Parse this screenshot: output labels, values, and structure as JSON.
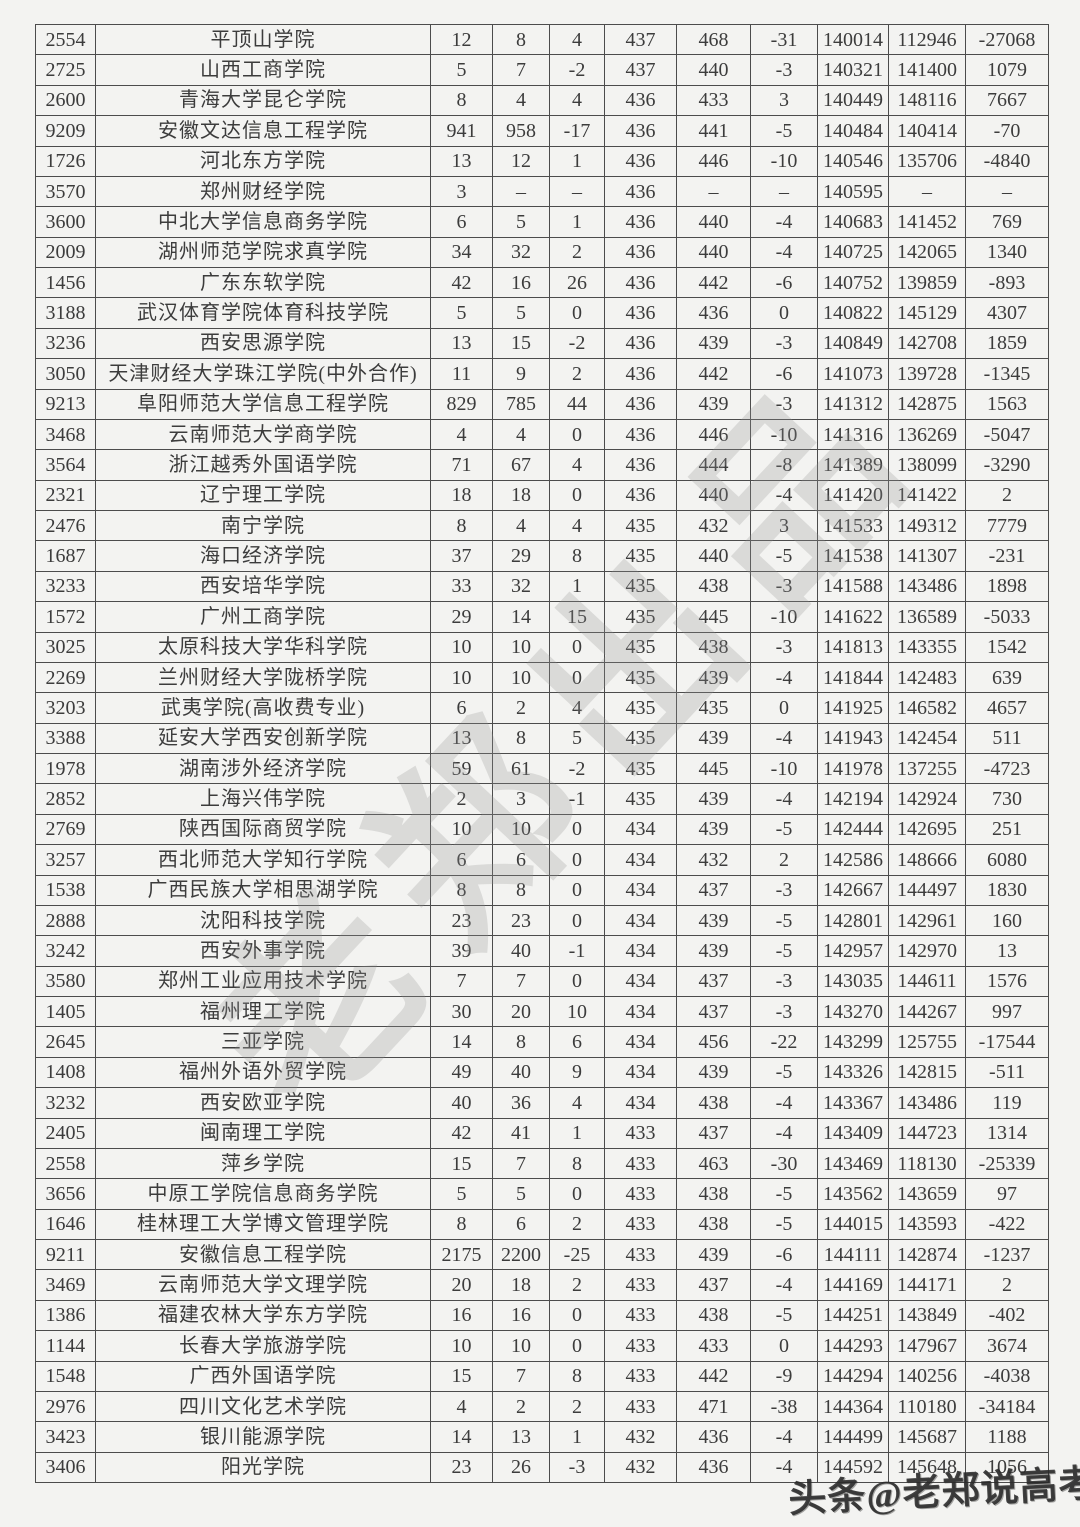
{
  "watermarks": {
    "diagonal_text": "老郑出品",
    "corner_text": "头条@老郑说高考"
  },
  "table": {
    "rows": [
      [
        "2554",
        "平顶山学院",
        "12",
        "8",
        "4",
        "437",
        "468",
        "-31",
        "140014",
        "112946",
        "-27068"
      ],
      [
        "2725",
        "山西工商学院",
        "5",
        "7",
        "-2",
        "437",
        "440",
        "-3",
        "140321",
        "141400",
        "1079"
      ],
      [
        "2600",
        "青海大学昆仑学院",
        "8",
        "4",
        "4",
        "436",
        "433",
        "3",
        "140449",
        "148116",
        "7667"
      ],
      [
        "9209",
        "安徽文达信息工程学院",
        "941",
        "958",
        "-17",
        "436",
        "441",
        "-5",
        "140484",
        "140414",
        "-70"
      ],
      [
        "1726",
        "河北东方学院",
        "13",
        "12",
        "1",
        "436",
        "446",
        "-10",
        "140546",
        "135706",
        "-4840"
      ],
      [
        "3570",
        "郑州财经学院",
        "3",
        "–",
        "–",
        "436",
        "–",
        "–",
        "140595",
        "–",
        "–"
      ],
      [
        "3600",
        "中北大学信息商务学院",
        "6",
        "5",
        "1",
        "436",
        "440",
        "-4",
        "140683",
        "141452",
        "769"
      ],
      [
        "2009",
        "湖州师范学院求真学院",
        "34",
        "32",
        "2",
        "436",
        "440",
        "-4",
        "140725",
        "142065",
        "1340"
      ],
      [
        "1456",
        "广东东软学院",
        "42",
        "16",
        "26",
        "436",
        "442",
        "-6",
        "140752",
        "139859",
        "-893"
      ],
      [
        "3188",
        "武汉体育学院体育科技学院",
        "5",
        "5",
        "0",
        "436",
        "436",
        "0",
        "140822",
        "145129",
        "4307"
      ],
      [
        "3236",
        "西安思源学院",
        "13",
        "15",
        "-2",
        "436",
        "439",
        "-3",
        "140849",
        "142708",
        "1859"
      ],
      [
        "3050",
        "天津财经大学珠江学院(中外合作)",
        "11",
        "9",
        "2",
        "436",
        "442",
        "-6",
        "141073",
        "139728",
        "-1345"
      ],
      [
        "9213",
        "阜阳师范大学信息工程学院",
        "829",
        "785",
        "44",
        "436",
        "439",
        "-3",
        "141312",
        "142875",
        "1563"
      ],
      [
        "3468",
        "云南师范大学商学院",
        "4",
        "4",
        "0",
        "436",
        "446",
        "-10",
        "141316",
        "136269",
        "-5047"
      ],
      [
        "3564",
        "浙江越秀外国语学院",
        "71",
        "67",
        "4",
        "436",
        "444",
        "-8",
        "141389",
        "138099",
        "-3290"
      ],
      [
        "2321",
        "辽宁理工学院",
        "18",
        "18",
        "0",
        "436",
        "440",
        "-4",
        "141420",
        "141422",
        "2"
      ],
      [
        "2476",
        "南宁学院",
        "8",
        "4",
        "4",
        "435",
        "432",
        "3",
        "141533",
        "149312",
        "7779"
      ],
      [
        "1687",
        "海口经济学院",
        "37",
        "29",
        "8",
        "435",
        "440",
        "-5",
        "141538",
        "141307",
        "-231"
      ],
      [
        "3233",
        "西安培华学院",
        "33",
        "32",
        "1",
        "435",
        "438",
        "-3",
        "141588",
        "143486",
        "1898"
      ],
      [
        "1572",
        "广州工商学院",
        "29",
        "14",
        "15",
        "435",
        "445",
        "-10",
        "141622",
        "136589",
        "-5033"
      ],
      [
        "3025",
        "太原科技大学华科学院",
        "10",
        "10",
        "0",
        "435",
        "438",
        "-3",
        "141813",
        "143355",
        "1542"
      ],
      [
        "2269",
        "兰州财经大学陇桥学院",
        "10",
        "10",
        "0",
        "435",
        "439",
        "-4",
        "141844",
        "142483",
        "639"
      ],
      [
        "3203",
        "武夷学院(高收费专业)",
        "6",
        "2",
        "4",
        "435",
        "435",
        "0",
        "141925",
        "146582",
        "4657"
      ],
      [
        "3388",
        "延安大学西安创新学院",
        "13",
        "8",
        "5",
        "435",
        "439",
        "-4",
        "141943",
        "142454",
        "511"
      ],
      [
        "1978",
        "湖南涉外经济学院",
        "59",
        "61",
        "-2",
        "435",
        "445",
        "-10",
        "141978",
        "137255",
        "-4723"
      ],
      [
        "2852",
        "上海兴伟学院",
        "2",
        "3",
        "-1",
        "435",
        "439",
        "-4",
        "142194",
        "142924",
        "730"
      ],
      [
        "2769",
        "陕西国际商贸学院",
        "10",
        "10",
        "0",
        "434",
        "439",
        "-5",
        "142444",
        "142695",
        "251"
      ],
      [
        "3257",
        "西北师范大学知行学院",
        "6",
        "6",
        "0",
        "434",
        "432",
        "2",
        "142586",
        "148666",
        "6080"
      ],
      [
        "1538",
        "广西民族大学相思湖学院",
        "8",
        "8",
        "0",
        "434",
        "437",
        "-3",
        "142667",
        "144497",
        "1830"
      ],
      [
        "2888",
        "沈阳科技学院",
        "23",
        "23",
        "0",
        "434",
        "439",
        "-5",
        "142801",
        "142961",
        "160"
      ],
      [
        "3242",
        "西安外事学院",
        "39",
        "40",
        "-1",
        "434",
        "439",
        "-5",
        "142957",
        "142970",
        "13"
      ],
      [
        "3580",
        "郑州工业应用技术学院",
        "7",
        "7",
        "0",
        "434",
        "437",
        "-3",
        "143035",
        "144611",
        "1576"
      ],
      [
        "1405",
        "福州理工学院",
        "30",
        "20",
        "10",
        "434",
        "437",
        "-3",
        "143270",
        "144267",
        "997"
      ],
      [
        "2645",
        "三亚学院",
        "14",
        "8",
        "6",
        "434",
        "456",
        "-22",
        "143299",
        "125755",
        "-17544"
      ],
      [
        "1408",
        "福州外语外贸学院",
        "49",
        "40",
        "9",
        "434",
        "439",
        "-5",
        "143326",
        "142815",
        "-511"
      ],
      [
        "3232",
        "西安欧亚学院",
        "40",
        "36",
        "4",
        "434",
        "438",
        "-4",
        "143367",
        "143486",
        "119"
      ],
      [
        "2405",
        "闽南理工学院",
        "42",
        "41",
        "1",
        "433",
        "437",
        "-4",
        "143409",
        "144723",
        "1314"
      ],
      [
        "2558",
        "萍乡学院",
        "15",
        "7",
        "8",
        "433",
        "463",
        "-30",
        "143469",
        "118130",
        "-25339"
      ],
      [
        "3656",
        "中原工学院信息商务学院",
        "5",
        "5",
        "0",
        "433",
        "438",
        "-5",
        "143562",
        "143659",
        "97"
      ],
      [
        "1646",
        "桂林理工大学博文管理学院",
        "8",
        "6",
        "2",
        "433",
        "438",
        "-5",
        "144015",
        "143593",
        "-422"
      ],
      [
        "9211",
        "安徽信息工程学院",
        "2175",
        "2200",
        "-25",
        "433",
        "439",
        "-6",
        "144111",
        "142874",
        "-1237"
      ],
      [
        "3469",
        "云南师范大学文理学院",
        "20",
        "18",
        "2",
        "433",
        "437",
        "-4",
        "144169",
        "144171",
        "2"
      ],
      [
        "1386",
        "福建农林大学东方学院",
        "16",
        "16",
        "0",
        "433",
        "438",
        "-5",
        "144251",
        "143849",
        "-402"
      ],
      [
        "1144",
        "长春大学旅游学院",
        "10",
        "10",
        "0",
        "433",
        "433",
        "0",
        "144293",
        "147967",
        "3674"
      ],
      [
        "1548",
        "广西外国语学院",
        "15",
        "7",
        "8",
        "433",
        "442",
        "-9",
        "144294",
        "140256",
        "-4038"
      ],
      [
        "2976",
        "四川文化艺术学院",
        "4",
        "2",
        "2",
        "433",
        "471",
        "-38",
        "144364",
        "110180",
        "-34184"
      ],
      [
        "3423",
        "银川能源学院",
        "14",
        "13",
        "1",
        "432",
        "436",
        "-4",
        "144499",
        "145687",
        "1188"
      ],
      [
        "3406",
        "阳光学院",
        "23",
        "26",
        "-3",
        "432",
        "436",
        "-4",
        "144592",
        "145648",
        "1056"
      ]
    ]
  }
}
